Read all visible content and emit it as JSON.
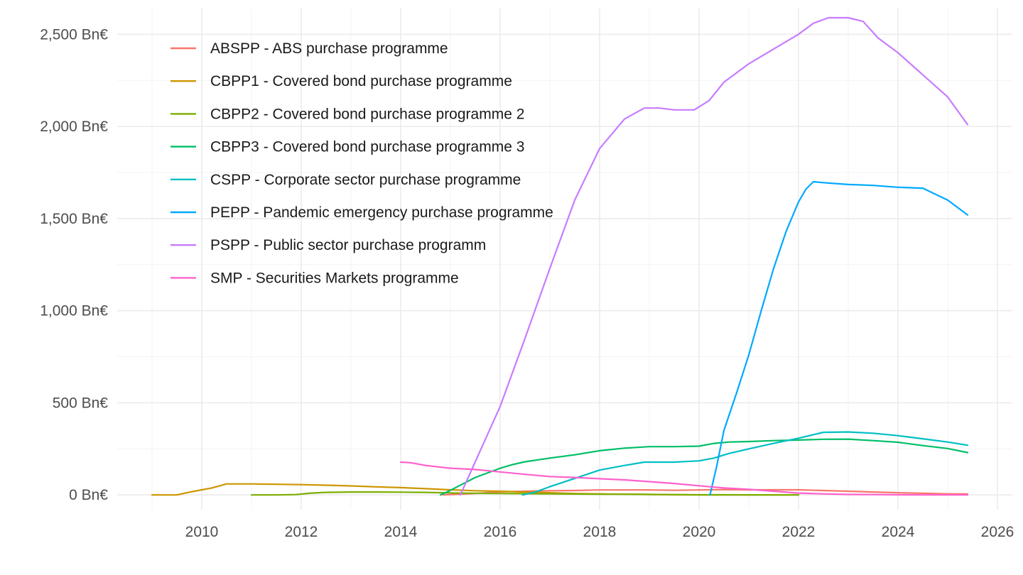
{
  "chart_data": {
    "type": "line",
    "title": "",
    "xlabel": "",
    "ylabel": "",
    "xlim": [
      2008.3,
      2026.3
    ],
    "ylim": [
      -80,
      2640
    ],
    "x_ticks": [
      2010,
      2012,
      2014,
      2016,
      2018,
      2020,
      2022,
      2024,
      2026
    ],
    "x_tick_labels": [
      "2010",
      "2012",
      "2014",
      "2016",
      "2018",
      "2020",
      "2022",
      "2024",
      "2026"
    ],
    "y_ticks": [
      0,
      500,
      1000,
      1500,
      2000,
      2500
    ],
    "y_tick_labels": [
      "0 Bn€",
      "500 Bn€",
      "1,000 Bn€",
      "1,500 Bn€",
      "2,000 Bn€",
      "2,500 Bn€"
    ],
    "grid": true,
    "legend_position": "top-left",
    "series": [
      {
        "name": "ABSPP - ABS purchase programme",
        "color": "#F8766D",
        "points": [
          [
            2014.85,
            0
          ],
          [
            2015.0,
            2
          ],
          [
            2015.5,
            8
          ],
          [
            2016.0,
            17
          ],
          [
            2016.5,
            20
          ],
          [
            2017.0,
            23
          ],
          [
            2017.5,
            24
          ],
          [
            2018.0,
            27
          ],
          [
            2018.5,
            27
          ],
          [
            2019.0,
            27
          ],
          [
            2019.5,
            25
          ],
          [
            2020.0,
            27
          ],
          [
            2020.5,
            29
          ],
          [
            2021.0,
            28
          ],
          [
            2021.5,
            28
          ],
          [
            2022.0,
            28
          ],
          [
            2022.5,
            24
          ],
          [
            2023.0,
            20
          ],
          [
            2023.5,
            16
          ],
          [
            2024.0,
            12
          ],
          [
            2024.5,
            9
          ],
          [
            2025.0,
            6
          ],
          [
            2025.4,
            5
          ]
        ]
      },
      {
        "name": "CBPP1 - Covered bond purchase programme",
        "color": "#CD9600",
        "points": [
          [
            2009.0,
            0
          ],
          [
            2009.5,
            0
          ],
          [
            2009.7,
            12
          ],
          [
            2010.0,
            28
          ],
          [
            2010.2,
            38
          ],
          [
            2010.5,
            60
          ],
          [
            2011.0,
            60
          ],
          [
            2011.5,
            58
          ],
          [
            2012.0,
            56
          ],
          [
            2012.5,
            53
          ],
          [
            2013.0,
            49
          ],
          [
            2013.5,
            44
          ],
          [
            2014.0,
            40
          ],
          [
            2014.5,
            34
          ],
          [
            2015.0,
            28
          ],
          [
            2015.5,
            23
          ],
          [
            2016.0,
            20
          ],
          [
            2016.5,
            16
          ],
          [
            2017.0,
            12
          ],
          [
            2017.5,
            8
          ],
          [
            2018.0,
            6
          ],
          [
            2018.5,
            4
          ],
          [
            2019.0,
            3
          ],
          [
            2019.5,
            1
          ],
          [
            2020.0,
            0.5
          ],
          [
            2020.5,
            0.3
          ],
          [
            2021.0,
            0.2
          ],
          [
            2021.5,
            0.1
          ],
          [
            2022.0,
            0
          ]
        ]
      },
      {
        "name": "CBPP2 - Covered bond purchase programme 2",
        "color": "#7CAE00",
        "points": [
          [
            2011.0,
            0
          ],
          [
            2011.5,
            0
          ],
          [
            2011.9,
            2
          ],
          [
            2012.2,
            10
          ],
          [
            2012.5,
            14
          ],
          [
            2013.0,
            16
          ],
          [
            2013.5,
            16
          ],
          [
            2014.0,
            15
          ],
          [
            2014.5,
            14
          ],
          [
            2015.0,
            11
          ],
          [
            2015.5,
            9
          ],
          [
            2016.0,
            8
          ],
          [
            2016.5,
            7
          ],
          [
            2017.0,
            6
          ],
          [
            2017.5,
            5
          ],
          [
            2018.0,
            4
          ],
          [
            2018.5,
            4
          ],
          [
            2019.0,
            3
          ],
          [
            2019.5,
            2
          ],
          [
            2020.0,
            1
          ],
          [
            2020.5,
            1
          ],
          [
            2021.0,
            0.5
          ],
          [
            2021.5,
            0.2
          ],
          [
            2022.0,
            0
          ]
        ]
      },
      {
        "name": "CBPP3 - Covered bond purchase programme 3",
        "color": "#00BE67",
        "points": [
          [
            2014.8,
            0
          ],
          [
            2015.0,
            25
          ],
          [
            2015.25,
            60
          ],
          [
            2015.5,
            95
          ],
          [
            2015.75,
            120
          ],
          [
            2016.0,
            145
          ],
          [
            2016.25,
            165
          ],
          [
            2016.5,
            180
          ],
          [
            2017.0,
            200
          ],
          [
            2017.5,
            218
          ],
          [
            2018.0,
            240
          ],
          [
            2018.5,
            254
          ],
          [
            2019.0,
            262
          ],
          [
            2019.5,
            262
          ],
          [
            2020.0,
            265
          ],
          [
            2020.3,
            280
          ],
          [
            2020.6,
            287
          ],
          [
            2021.0,
            290
          ],
          [
            2021.5,
            295
          ],
          [
            2022.0,
            298
          ],
          [
            2022.5,
            302
          ],
          [
            2023.0,
            303
          ],
          [
            2023.5,
            295
          ],
          [
            2024.0,
            286
          ],
          [
            2024.5,
            268
          ],
          [
            2025.0,
            252
          ],
          [
            2025.4,
            230
          ]
        ]
      },
      {
        "name": "CSPP - Corporate sector purchase programme",
        "color": "#00BFC4",
        "points": [
          [
            2016.45,
            0
          ],
          [
            2016.7,
            15
          ],
          [
            2017.0,
            45
          ],
          [
            2017.5,
            90
          ],
          [
            2018.0,
            135
          ],
          [
            2018.5,
            160
          ],
          [
            2018.9,
            178
          ],
          [
            2019.5,
            178
          ],
          [
            2020.0,
            185
          ],
          [
            2020.3,
            200
          ],
          [
            2020.6,
            225
          ],
          [
            2021.0,
            250
          ],
          [
            2021.5,
            280
          ],
          [
            2022.0,
            308
          ],
          [
            2022.5,
            340
          ],
          [
            2023.0,
            342
          ],
          [
            2023.5,
            335
          ],
          [
            2024.0,
            322
          ],
          [
            2024.5,
            305
          ],
          [
            2025.0,
            287
          ],
          [
            2025.4,
            270
          ]
        ]
      },
      {
        "name": "PEPP - Pandemic emergency purchase programme",
        "color": "#00A9FF",
        "points": [
          [
            2020.22,
            0
          ],
          [
            2020.35,
            150
          ],
          [
            2020.5,
            350
          ],
          [
            2020.75,
            550
          ],
          [
            2021.0,
            760
          ],
          [
            2021.25,
            1000
          ],
          [
            2021.5,
            1230
          ],
          [
            2021.75,
            1430
          ],
          [
            2022.0,
            1590
          ],
          [
            2022.15,
            1660
          ],
          [
            2022.3,
            1700
          ],
          [
            2022.5,
            1695
          ],
          [
            2023.0,
            1685
          ],
          [
            2023.5,
            1680
          ],
          [
            2024.0,
            1670
          ],
          [
            2024.5,
            1665
          ],
          [
            2025.0,
            1600
          ],
          [
            2025.4,
            1520
          ]
        ]
      },
      {
        "name": "PSPP - Public sector purchase programm",
        "color": "#C77CFF",
        "points": [
          [
            2015.2,
            0
          ],
          [
            2015.5,
            180
          ],
          [
            2016.0,
            480
          ],
          [
            2016.5,
            850
          ],
          [
            2017.0,
            1230
          ],
          [
            2017.5,
            1600
          ],
          [
            2018.0,
            1880
          ],
          [
            2018.5,
            2040
          ],
          [
            2018.9,
            2100
          ],
          [
            2019.2,
            2100
          ],
          [
            2019.5,
            2090
          ],
          [
            2019.9,
            2090
          ],
          [
            2020.2,
            2140
          ],
          [
            2020.5,
            2240
          ],
          [
            2021.0,
            2340
          ],
          [
            2021.5,
            2420
          ],
          [
            2022.0,
            2500
          ],
          [
            2022.3,
            2560
          ],
          [
            2022.6,
            2590
          ],
          [
            2023.0,
            2590
          ],
          [
            2023.3,
            2570
          ],
          [
            2023.6,
            2480
          ],
          [
            2024.0,
            2400
          ],
          [
            2024.5,
            2280
          ],
          [
            2025.0,
            2160
          ],
          [
            2025.4,
            2010
          ]
        ]
      },
      {
        "name": "SMP - Securities Markets programme",
        "color": "#FF61CC",
        "points": [
          [
            2014.0,
            178
          ],
          [
            2014.2,
            175
          ],
          [
            2014.5,
            160
          ],
          [
            2015.0,
            145
          ],
          [
            2015.5,
            138
          ],
          [
            2016.0,
            125
          ],
          [
            2016.5,
            112
          ],
          [
            2017.0,
            100
          ],
          [
            2017.5,
            95
          ],
          [
            2018.0,
            88
          ],
          [
            2018.5,
            82
          ],
          [
            2019.0,
            72
          ],
          [
            2019.5,
            62
          ],
          [
            2020.0,
            50
          ],
          [
            2020.5,
            38
          ],
          [
            2021.0,
            30
          ],
          [
            2021.5,
            20
          ],
          [
            2022.0,
            10
          ],
          [
            2022.5,
            6
          ],
          [
            2023.0,
            3
          ],
          [
            2023.5,
            2
          ],
          [
            2024.0,
            1
          ],
          [
            2024.5,
            0
          ],
          [
            2025.4,
            0
          ]
        ]
      }
    ]
  }
}
